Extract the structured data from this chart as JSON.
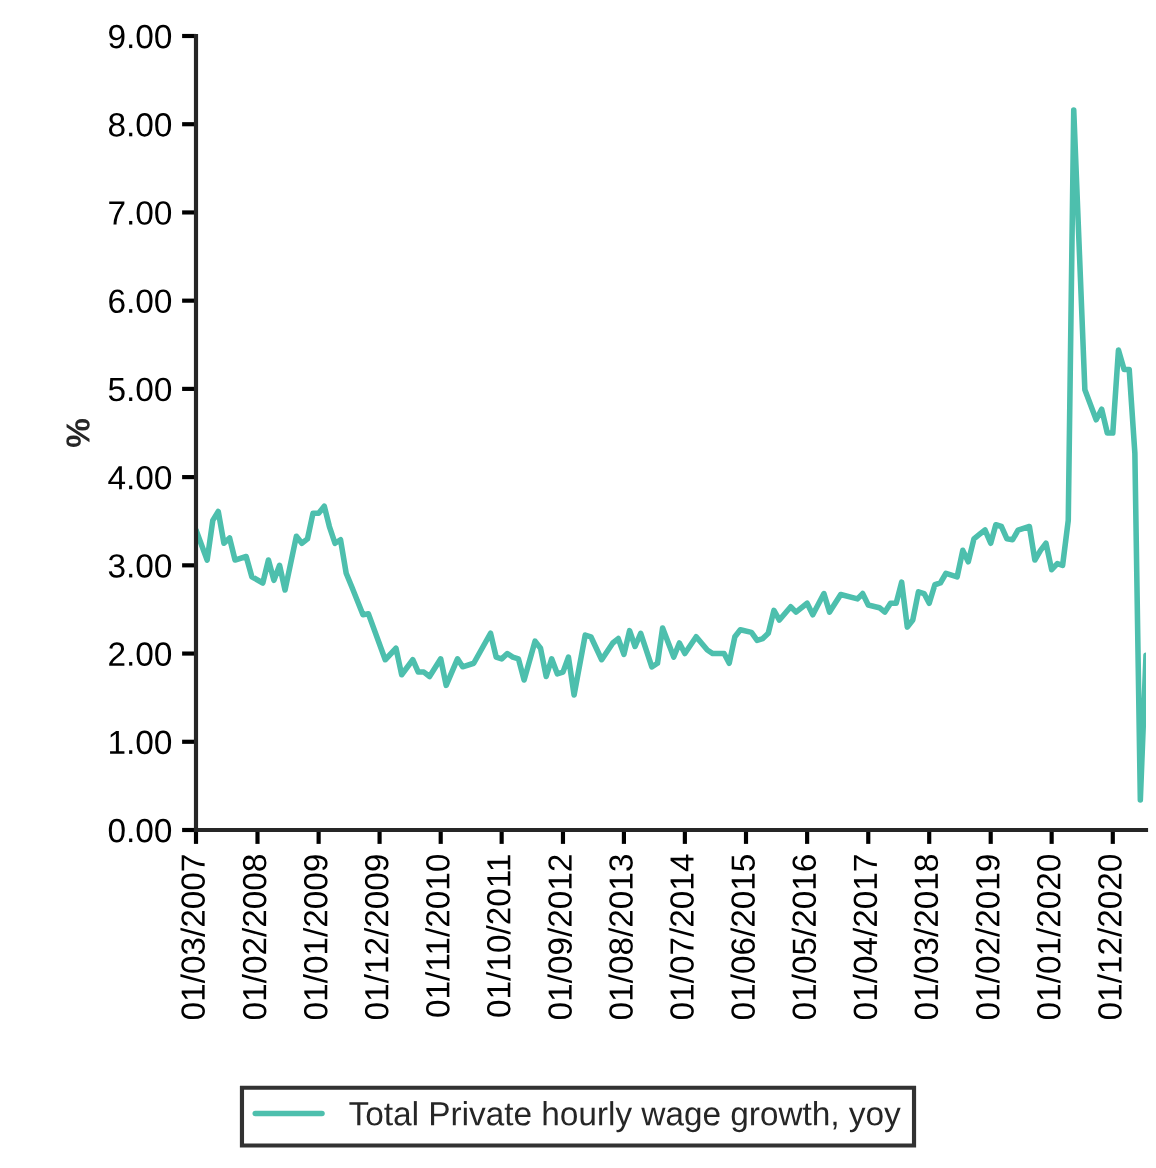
{
  "chart_data": {
    "type": "line",
    "ylabel": "%",
    "legend": "bottom",
    "grid": false,
    "marker": "none",
    "line_style": "solid",
    "xlim": [
      "2007-03",
      "2021-06"
    ],
    "xticks": [
      {
        "value": "2007-03",
        "label": "01/03/2007"
      },
      {
        "value": "2008-02",
        "label": "01/02/2008"
      },
      {
        "value": "2009-01",
        "label": "01/01/2009"
      },
      {
        "value": "2009-12",
        "label": "01/12/2009"
      },
      {
        "value": "2010-11",
        "label": "01/11/2010"
      },
      {
        "value": "2011-10",
        "label": "01/10/2011"
      },
      {
        "value": "2012-09",
        "label": "01/09/2012"
      },
      {
        "value": "2013-08",
        "label": "01/08/2013"
      },
      {
        "value": "2014-07",
        "label": "01/07/2014"
      },
      {
        "value": "2015-06",
        "label": "01/06/2015"
      },
      {
        "value": "2016-05",
        "label": "01/05/2016"
      },
      {
        "value": "2017-04",
        "label": "01/04/2017"
      },
      {
        "value": "2018-03",
        "label": "01/03/2018"
      },
      {
        "value": "2019-02",
        "label": "01/02/2019"
      },
      {
        "value": "2020-01",
        "label": "01/01/2020"
      },
      {
        "value": "2020-12",
        "label": "01/12/2020"
      }
    ],
    "ylim": [
      0,
      9
    ],
    "yticks": [
      {
        "value": 0,
        "label": "0.00"
      },
      {
        "value": 1,
        "label": "1.00"
      },
      {
        "value": 2,
        "label": "2.00"
      },
      {
        "value": 3,
        "label": "3.00"
      },
      {
        "value": 4,
        "label": "4.00"
      },
      {
        "value": 5,
        "label": "5.00"
      },
      {
        "value": 6,
        "label": "6.00"
      },
      {
        "value": 7,
        "label": "7.00"
      },
      {
        "value": 8,
        "label": "8.00"
      },
      {
        "value": 9,
        "label": "9.00"
      }
    ],
    "x": [
      "2007-03",
      "2007-05",
      "2007-06",
      "2007-07",
      "2007-08",
      "2007-09",
      "2007-10",
      "2007-12",
      "2008-01",
      "2008-03",
      "2008-04",
      "2008-05",
      "2008-06",
      "2008-07",
      "2008-09",
      "2008-10",
      "2008-11",
      "2008-12",
      "2009-01",
      "2009-02",
      "2009-03",
      "2009-04",
      "2009-05",
      "2009-06",
      "2009-07",
      "2009-09",
      "2009-10",
      "2010-01",
      "2010-03",
      "2010-04",
      "2010-06",
      "2010-07",
      "2010-08",
      "2010-09",
      "2010-11",
      "2010-12",
      "2011-02",
      "2011-03",
      "2011-05",
      "2011-08",
      "2011-09",
      "2011-10",
      "2011-11",
      "2011-12",
      "2012-01",
      "2012-02",
      "2012-04",
      "2012-05",
      "2012-06",
      "2012-07",
      "2012-08",
      "2012-09",
      "2012-10",
      "2012-11",
      "2013-01",
      "2013-02",
      "2013-04",
      "2013-06",
      "2013-07",
      "2013-08",
      "2013-09",
      "2013-10",
      "2013-11",
      "2014-01",
      "2014-02",
      "2014-03",
      "2014-05",
      "2014-06",
      "2014-07",
      "2014-09",
      "2014-11",
      "2014-12",
      "2015-02",
      "2015-03",
      "2015-04",
      "2015-05",
      "2015-07",
      "2015-08",
      "2015-09",
      "2015-10",
      "2015-11",
      "2015-12",
      "2016-02",
      "2016-03",
      "2016-05",
      "2016-06",
      "2016-08",
      "2016-09",
      "2016-11",
      "2017-02",
      "2017-03",
      "2017-04",
      "2017-06",
      "2017-07",
      "2017-08",
      "2017-09",
      "2017-10",
      "2017-11",
      "2017-12",
      "2018-01",
      "2018-02",
      "2018-03",
      "2018-04",
      "2018-05",
      "2018-06",
      "2018-08",
      "2018-09",
      "2018-10",
      "2018-11",
      "2018-12",
      "2019-01",
      "2019-02",
      "2019-03",
      "2019-04",
      "2019-05",
      "2019-06",
      "2019-07",
      "2019-09",
      "2019-10",
      "2019-11",
      "2019-12",
      "2020-01",
      "2020-02",
      "2020-03",
      "2020-04",
      "2020-05",
      "2020-07",
      "2020-09",
      "2020-10",
      "2020-11",
      "2020-12",
      "2021-01",
      "2021-02",
      "2021-03",
      "2021-04",
      "2021-05",
      "2021-06"
    ],
    "series": [
      {
        "name": "Total Private hourly wage growth, yoy",
        "color": "#4dbfad",
        "values": [
          3.4,
          3.06,
          3.51,
          3.61,
          3.25,
          3.31,
          3.06,
          3.1,
          2.87,
          2.8,
          3.06,
          2.83,
          3.0,
          2.72,
          3.33,
          3.25,
          3.3,
          3.59,
          3.59,
          3.67,
          3.44,
          3.25,
          3.29,
          2.91,
          2.76,
          2.44,
          2.45,
          1.93,
          2.06,
          1.76,
          1.93,
          1.79,
          1.79,
          1.74,
          1.94,
          1.64,
          1.94,
          1.85,
          1.89,
          2.23,
          1.96,
          1.94,
          2.0,
          1.96,
          1.94,
          1.7,
          2.14,
          2.06,
          1.74,
          1.94,
          1.77,
          1.79,
          1.96,
          1.53,
          2.21,
          2.19,
          1.93,
          2.12,
          2.17,
          1.99,
          2.26,
          2.08,
          2.23,
          1.85,
          1.89,
          2.29,
          1.96,
          2.12,
          2.0,
          2.19,
          2.04,
          2.0,
          2.0,
          1.89,
          2.19,
          2.27,
          2.24,
          2.15,
          2.17,
          2.23,
          2.49,
          2.38,
          2.53,
          2.47,
          2.57,
          2.44,
          2.68,
          2.47,
          2.67,
          2.62,
          2.68,
          2.55,
          2.52,
          2.47,
          2.57,
          2.57,
          2.81,
          2.3,
          2.38,
          2.7,
          2.68,
          2.57,
          2.78,
          2.8,
          2.91,
          2.87,
          3.17,
          3.04,
          3.3,
          3.35,
          3.4,
          3.25,
          3.46,
          3.44,
          3.3,
          3.29,
          3.4,
          3.44,
          3.06,
          3.17,
          3.25,
          2.95,
          3.02,
          3.0,
          3.51,
          8.16,
          4.99,
          4.65,
          4.77,
          4.5,
          4.5,
          5.44,
          5.22,
          5.22,
          4.27,
          0.34,
          1.98
        ]
      }
    ]
  }
}
